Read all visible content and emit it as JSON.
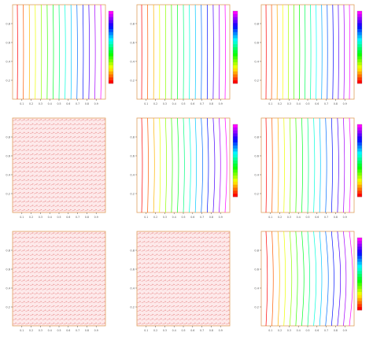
{
  "figure": {
    "rows": 3,
    "cols": 3,
    "colors": {
      "axis": "#e0a060",
      "vector": "#e06060",
      "grid_bg": "#fde9ea",
      "tick": "#555555"
    },
    "colorbar_stops": [
      "#ff00ff",
      "#8000ff",
      "#0000ff",
      "#0080ff",
      "#00ffff",
      "#00ff80",
      "#00ff00",
      "#80ff00",
      "#ffff00",
      "#ff8000",
      "#ff0000"
    ]
  },
  "chart_data": [
    {
      "type": "contour",
      "panel": "r1c1",
      "lines": 15,
      "curvature": 0.6,
      "xlim": [
        0,
        1
      ],
      "ylim": [
        0,
        1
      ],
      "yticks": [
        "0.8",
        "0.6",
        "0.4",
        "0.2"
      ],
      "xticks": [
        "0.1",
        "0.2",
        "0.3",
        "0.4",
        "0.5",
        "0.6",
        "0.7",
        "0.8",
        "0.9"
      ],
      "colorbar": true
    },
    {
      "type": "contour",
      "panel": "r1c2",
      "lines": 15,
      "curvature": 0.4,
      "xlim": [
        0,
        1
      ],
      "ylim": [
        0,
        1
      ],
      "yticks": [
        "0.8",
        "0.6",
        "0.4",
        "0.2"
      ],
      "xticks": [
        "0.1",
        "0.2",
        "0.3",
        "0.4",
        "0.5",
        "0.6",
        "0.7",
        "0.8",
        "0.9"
      ],
      "colorbar": true
    },
    {
      "type": "contour",
      "panel": "r1c3",
      "lines": 16,
      "curvature": 0.5,
      "xlim": [
        0,
        1
      ],
      "ylim": [
        0,
        1
      ],
      "yticks": [
        "0.8",
        "0.6",
        "0.4",
        "0.2"
      ],
      "xticks": [
        "0.1",
        "0.2",
        "0.3",
        "0.4",
        "0.5",
        "0.6",
        "0.7",
        "0.8",
        "0.9"
      ],
      "colorbar": true
    },
    {
      "type": "vector",
      "panel": "r2c1",
      "grid": 22,
      "xlim": [
        0,
        1
      ],
      "ylim": [
        0,
        1
      ],
      "yticks": [
        "0.8",
        "0.6",
        "0.4",
        "0.2"
      ],
      "xticks": [
        "0.1",
        "0.2",
        "0.3",
        "0.4",
        "0.5",
        "0.6",
        "0.7",
        "0.8",
        "0.9"
      ],
      "colorbar": false
    },
    {
      "type": "contour",
      "panel": "r2c2",
      "lines": 15,
      "curvature": 1.6,
      "xlim": [
        0,
        1
      ],
      "ylim": [
        0,
        1
      ],
      "yticks": [
        "0.8",
        "0.6",
        "0.4",
        "0.2"
      ],
      "xticks": [
        "0.1",
        "0.2",
        "0.3",
        "0.4",
        "0.5",
        "0.6",
        "0.7",
        "0.8",
        "0.9"
      ],
      "colorbar": true
    },
    {
      "type": "contour",
      "panel": "r2c3",
      "lines": 15,
      "curvature": 1.2,
      "xlim": [
        0,
        1
      ],
      "ylim": [
        0,
        1
      ],
      "yticks": [
        "0.8",
        "0.6",
        "0.4",
        "0.2"
      ],
      "xticks": [
        "0.1",
        "0.2",
        "0.3",
        "0.4",
        "0.5",
        "0.6",
        "0.7",
        "0.8",
        "0.9"
      ],
      "colorbar": true
    },
    {
      "type": "vector",
      "panel": "r3c1",
      "grid": 22,
      "xlim": [
        0,
        1
      ],
      "ylim": [
        0,
        1
      ],
      "yticks": [
        "0.8",
        "0.6",
        "0.4",
        "0.2"
      ],
      "xticks": [
        "0.1",
        "0.2",
        "0.3",
        "0.4",
        "0.5",
        "0.6",
        "0.7",
        "0.8",
        "0.9"
      ],
      "colorbar": false
    },
    {
      "type": "vector",
      "panel": "r3c2",
      "grid": 22,
      "xlim": [
        0,
        1
      ],
      "ylim": [
        0,
        1
      ],
      "yticks": [
        "0.8",
        "0.6",
        "0.4",
        "0.2"
      ],
      "xticks": [
        "0.1",
        "0.2",
        "0.3",
        "0.4",
        "0.5",
        "0.6",
        "0.7",
        "0.8",
        "0.9"
      ],
      "colorbar": false
    },
    {
      "type": "contour",
      "panel": "r3c3",
      "lines": 15,
      "curvature": 3.0,
      "xlim": [
        0,
        1
      ],
      "ylim": [
        0,
        1
      ],
      "yticks": [
        "0.8",
        "0.6",
        "0.4",
        "0.2"
      ],
      "xticks": [
        "0.1",
        "0.2",
        "0.3",
        "0.4",
        "0.5",
        "0.6",
        "0.7",
        "0.8",
        "0.9"
      ],
      "colorbar": true
    }
  ]
}
